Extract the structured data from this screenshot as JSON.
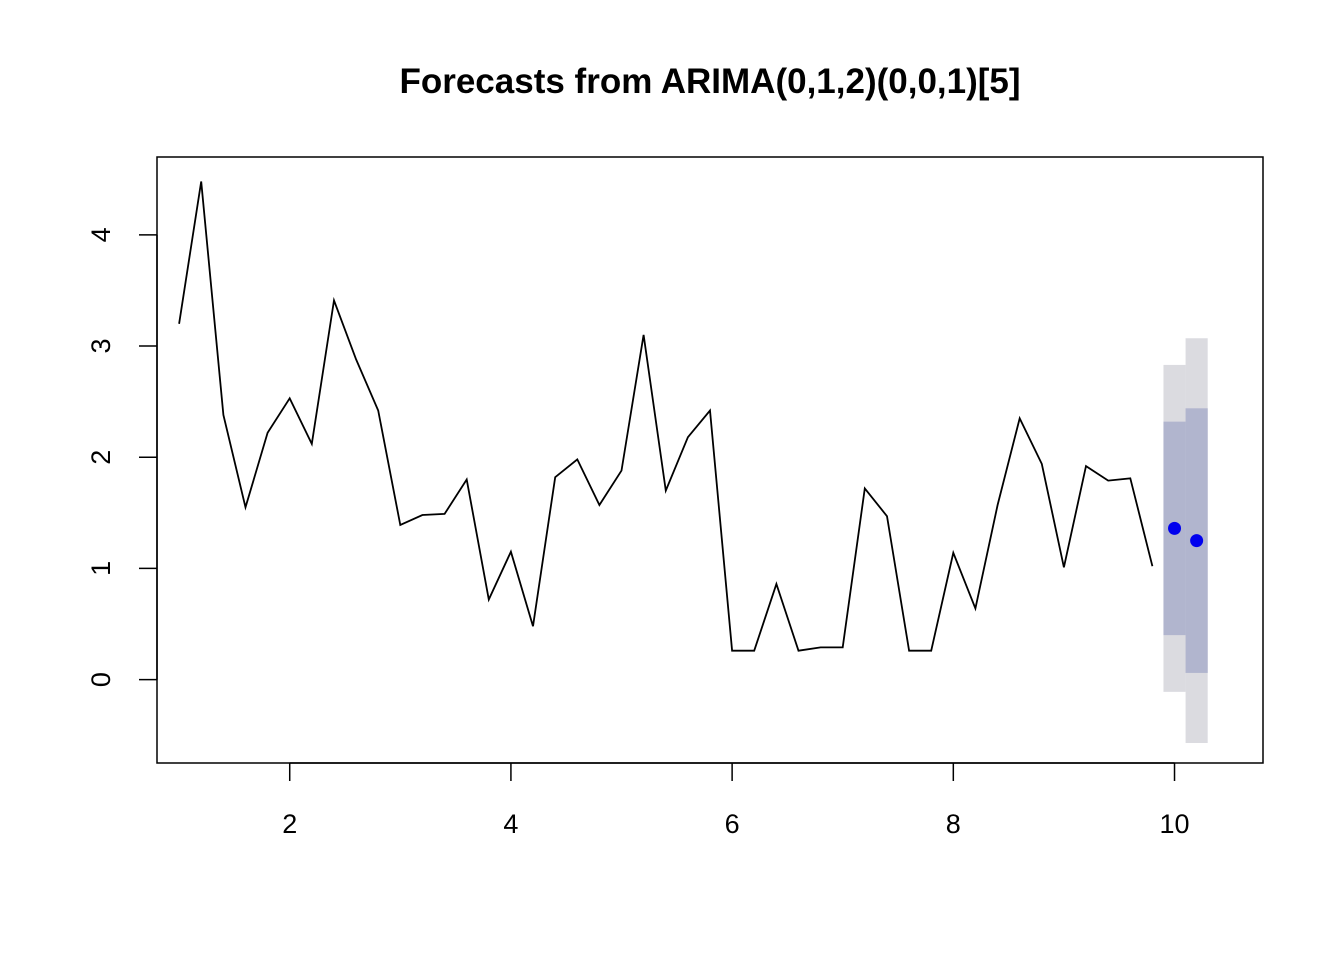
{
  "chart_data": {
    "type": "line",
    "title": "Forecasts from ARIMA(0,1,2)(0,0,1)[5]",
    "xlabel": "",
    "ylabel": "",
    "xlim": [
      0.8,
      10.8
    ],
    "ylim": [
      -0.75,
      4.7
    ],
    "x_ticks": [
      2,
      4,
      6,
      8,
      10
    ],
    "x_tick_labels": [
      "2",
      "4",
      "6",
      "8",
      "10"
    ],
    "y_ticks": [
      0,
      1,
      2,
      3,
      4
    ],
    "y_tick_labels": [
      "0",
      "1",
      "2",
      "3",
      "4"
    ],
    "grid": false,
    "legend": "none",
    "series": [
      {
        "kind": "observed",
        "color": "#000000",
        "x": [
          1.0,
          1.2,
          1.4,
          1.6,
          1.8,
          2.0,
          2.2,
          2.4,
          2.6,
          2.8,
          3.0,
          3.2,
          3.4,
          3.6,
          3.8,
          4.0,
          4.2,
          4.4,
          4.6,
          4.8,
          5.0,
          5.2,
          5.4,
          5.6,
          5.8,
          6.0,
          6.2,
          6.4,
          6.6,
          6.8,
          7.0,
          7.2,
          7.4,
          7.6,
          7.8,
          8.0,
          8.2,
          8.4,
          8.6,
          8.8,
          9.0,
          9.2,
          9.4,
          9.6,
          9.8
        ],
        "y": [
          3.2,
          4.48,
          2.38,
          1.55,
          2.22,
          2.53,
          2.12,
          3.41,
          2.88,
          2.42,
          1.39,
          1.48,
          1.49,
          1.8,
          0.72,
          1.15,
          0.48,
          1.82,
          1.98,
          1.57,
          1.88,
          3.1,
          1.7,
          2.18,
          2.42,
          0.26,
          0.26,
          0.86,
          0.26,
          0.29,
          0.29,
          1.72,
          1.47,
          0.26,
          0.26,
          1.14,
          0.64,
          1.57,
          2.35,
          1.94,
          1.01,
          1.92,
          1.79,
          1.81,
          1.02
        ]
      },
      {
        "kind": "forecast",
        "color": "#0000ee",
        "x": [
          10.0,
          10.2
        ],
        "y": [
          1.36,
          1.25
        ],
        "lower80": [
          0.4,
          0.06
        ],
        "upper80": [
          2.32,
          2.44
        ],
        "lower95": [
          -0.11,
          -0.57
        ],
        "upper95": [
          2.83,
          3.07
        ]
      }
    ],
    "colors": {
      "interval80": "#b1b5ce",
      "interval95": "#dbdbe0",
      "line": "#000000",
      "forecast_point": "#0000ee"
    }
  }
}
